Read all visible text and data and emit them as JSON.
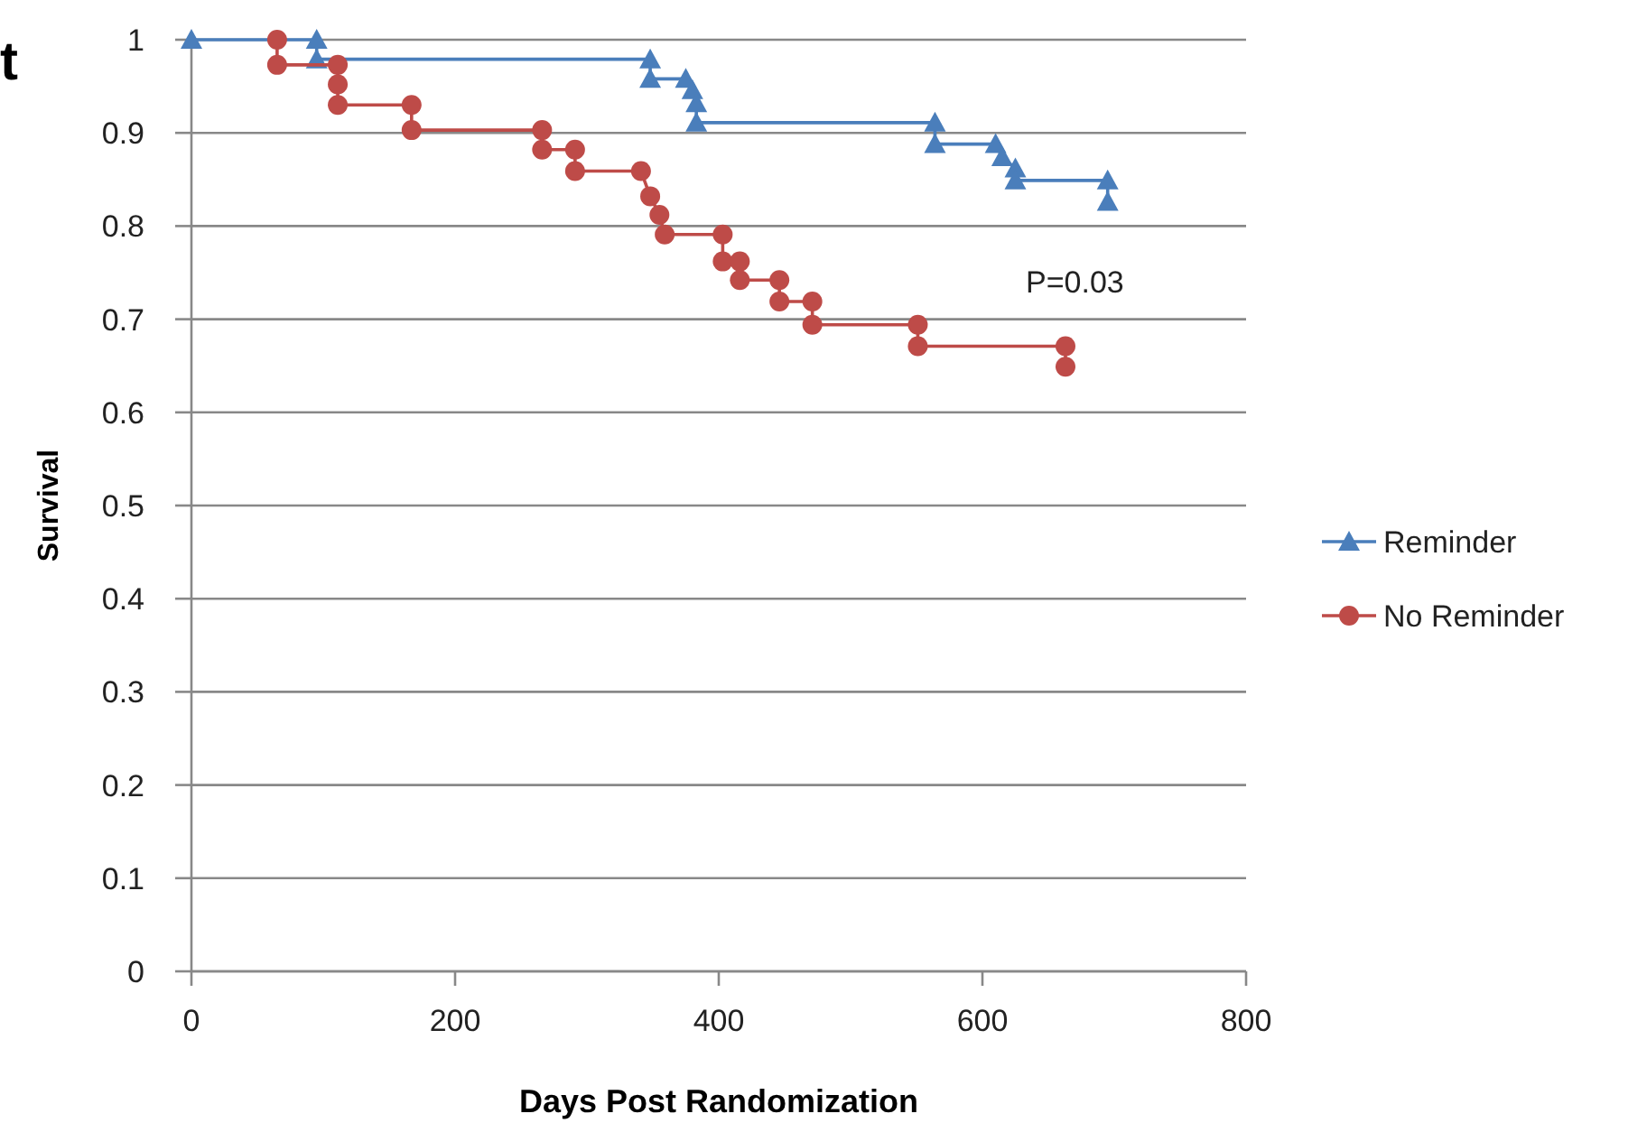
{
  "chart_data": {
    "type": "line",
    "xlabel": "Days Post Randomization",
    "ylabel": "Survival",
    "xlim": [
      0,
      800
    ],
    "xticks": [
      0,
      200,
      400,
      600,
      800
    ],
    "ylim": [
      0,
      1
    ],
    "yticks": [
      0,
      0.1,
      0.2,
      0.3,
      0.4,
      0.5,
      0.6,
      0.7,
      0.8,
      0.9,
      1
    ],
    "grid": "y",
    "legend": "right",
    "annotations": [
      "t",
      "P=0.03"
    ],
    "series": [
      {
        "name": "Reminder",
        "color": "#4a7ebb",
        "marker": "triangle",
        "x": [
          0,
          95,
          95,
          348,
          348,
          375,
          380,
          383,
          383,
          564,
          564,
          610,
          615,
          625,
          625,
          695,
          695
        ],
        "values": [
          1,
          1,
          0.979,
          0.979,
          0.958,
          0.958,
          0.946,
          0.932,
          0.911,
          0.911,
          0.888,
          0.888,
          0.874,
          0.862,
          0.849,
          0.849,
          0.826
        ]
      },
      {
        "name": "No Reminder",
        "color": "#be4b48",
        "marker": "circle",
        "x": [
          65,
          65,
          111,
          111,
          111,
          167,
          167,
          266,
          266,
          291,
          291,
          341,
          348,
          355,
          359,
          403,
          403,
          416,
          416,
          446,
          446,
          471,
          471,
          551,
          551,
          663,
          663
        ],
        "values": [
          1,
          0.973,
          0.973,
          0.952,
          0.93,
          0.93,
          0.903,
          0.903,
          0.882,
          0.882,
          0.859,
          0.859,
          0.832,
          0.812,
          0.791,
          0.791,
          0.762,
          0.762,
          0.742,
          0.742,
          0.719,
          0.719,
          0.694,
          0.694,
          0.671,
          0.671,
          0.649
        ]
      }
    ]
  }
}
